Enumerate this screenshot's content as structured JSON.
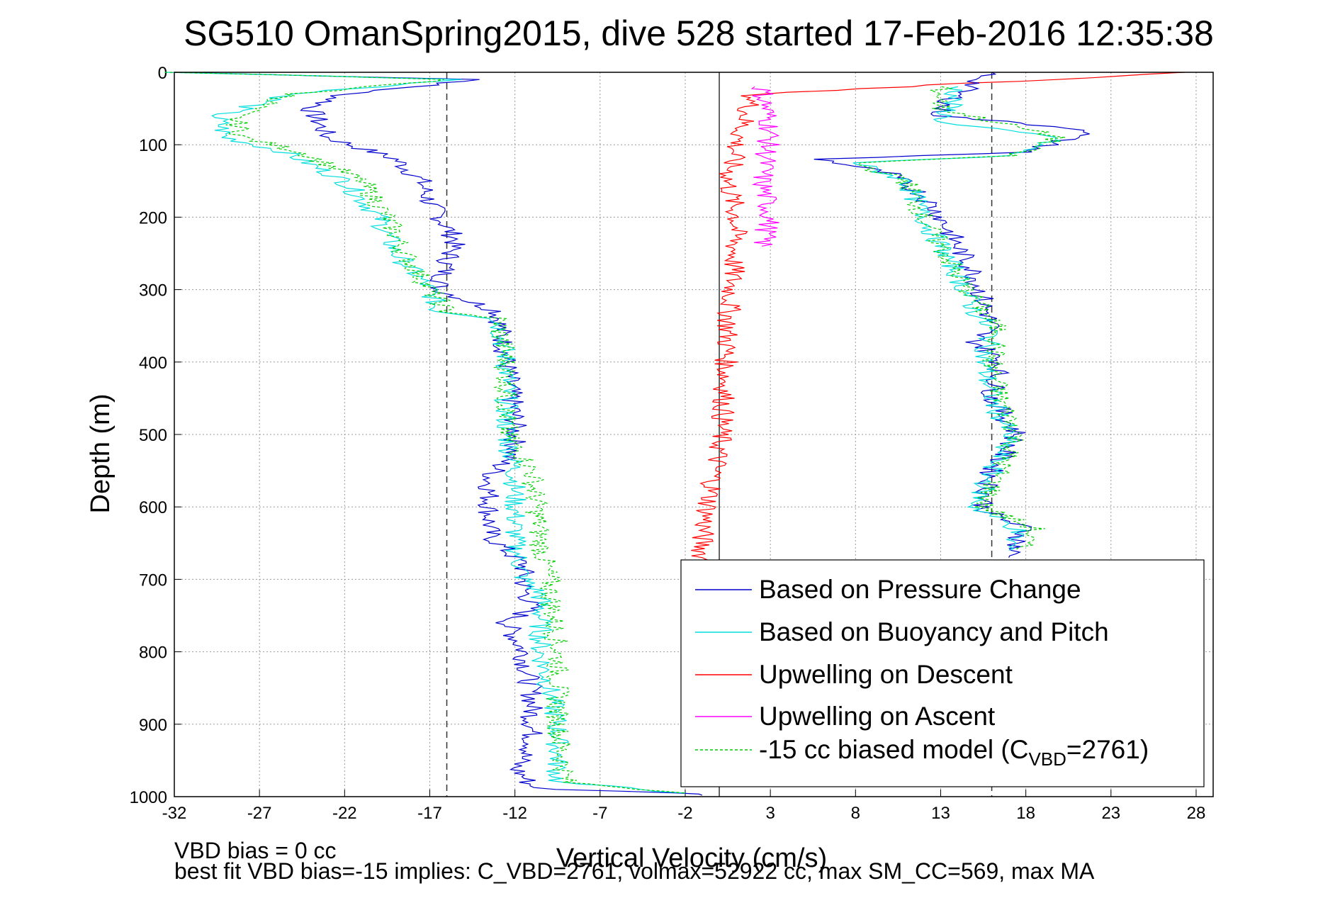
{
  "chart_data": {
    "type": "line",
    "title": "SG510 OmanSpring2015, dive 528 started 17-Feb-2016 12:35:38",
    "xlabel": "Vertical Velocity (cm/s)",
    "ylabel": "Depth (m)",
    "xlim": [
      -32,
      29
    ],
    "ylim": [
      0,
      1000
    ],
    "y_reversed": true,
    "grid": true,
    "xticks": [
      -32,
      -27,
      -22,
      -17,
      -12,
      -7,
      -2,
      3,
      8,
      13,
      18,
      23,
      28
    ],
    "yticks": [
      0,
      100,
      200,
      300,
      400,
      500,
      600,
      700,
      800,
      900,
      1000
    ],
    "reference_lines": [
      {
        "x": -16,
        "style": "dashed"
      },
      {
        "x": 0,
        "style": "solid"
      },
      {
        "x": 16,
        "style": "dashed"
      }
    ],
    "legend_placement": "bottom-right",
    "legend": [
      {
        "text": "Based on Pressure Change",
        "color": "#0000cc",
        "dash": "none"
      },
      {
        "text": "Based on Buoyancy and Pitch",
        "color": "#00dddd",
        "dash": "none"
      },
      {
        "text": "Upwelling on Descent",
        "color": "#ff0000",
        "dash": "none"
      },
      {
        "text": "Upwelling on Ascent",
        "color": "#ff00ff",
        "dash": "none"
      },
      {
        "text": "-15 cc biased model (C",
        "sub": "VBD",
        "suffix": "=2761)",
        "color": "#00cc00",
        "dash": "4,3"
      }
    ],
    "footnotes": [
      "VBD bias = 0 cc",
      "best fit VBD bias=-15 implies: C_VBD=2761, volmax=52922 cc, max SM_CC=569, max MA"
    ],
    "series": [
      {
        "name": "Based on Pressure Change",
        "color": "#0000cc",
        "dash": "none",
        "x": [
          -32,
          -14,
          -22,
          -24,
          -23,
          -19,
          -17.5,
          -17,
          -15.5,
          -16.5,
          -13,
          -12.5,
          -12,
          -12,
          -13.5,
          -13.5,
          -11.5,
          -11.5,
          -11,
          -12.5,
          -11.5,
          -11,
          -11,
          -12,
          -11,
          -10,
          -2,
          -1
        ],
        "y": [
          0,
          10,
          30,
          50,
          90,
          120,
          150,
          180,
          230,
          300,
          330,
          400,
          480,
          520,
          560,
          640,
          680,
          710,
          740,
          760,
          800,
          860,
          930,
          960,
          985,
          990,
          995,
          998
        ]
      },
      {
        "name": "Based on Buoyancy and Pitch",
        "color": "#00dddd",
        "dash": "none",
        "x": [
          -32,
          -15,
          -25,
          -29.5,
          -29,
          -25.5,
          -22,
          -20,
          -19,
          -17,
          -16.5,
          -13,
          -12.5,
          -12.5,
          -12,
          -12,
          -11.5,
          -10.5,
          -10.5,
          -9.5,
          -9.5,
          -2
        ],
        "y": [
          0,
          10,
          30,
          60,
          90,
          110,
          150,
          200,
          250,
          300,
          330,
          340,
          400,
          500,
          550,
          650,
          700,
          720,
          800,
          900,
          980,
          995
        ]
      },
      {
        "name": "-15 cc biased model (CVBD=2761)",
        "color": "#00cc00",
        "dash": "4,3",
        "x": [
          -32,
          -16,
          -25,
          -28.5,
          -28,
          -24.5,
          -21,
          -19.5,
          -18.5,
          -17,
          -16,
          -13,
          -12.5,
          -12.5,
          -11,
          -10.5,
          -10,
          -9.5,
          -9.5,
          -9,
          -2
        ],
        "y": [
          0,
          10,
          30,
          60,
          90,
          110,
          150,
          200,
          250,
          300,
          330,
          340,
          400,
          500,
          550,
          650,
          700,
          800,
          900,
          980,
          995
        ]
      },
      {
        "name": "Upwelling on Descent",
        "color": "#ff0000",
        "dash": "none",
        "x": [
          28,
          2,
          1,
          0.5,
          1,
          0.8,
          0.5,
          0.3,
          0,
          -0.5,
          -1,
          -1
        ],
        "y": [
          0,
          30,
          100,
          150,
          200,
          280,
          350,
          450,
          520,
          580,
          640,
          680
        ]
      },
      {
        "name": "Upwelling on Ascent",
        "color": "#ff00ff",
        "dash": "none",
        "x": [
          2.5,
          3,
          2.5,
          3,
          2.5
        ],
        "y": [
          20,
          80,
          150,
          200,
          240
        ]
      },
      {
        "name": "Based on Pressure Change (ascent)",
        "color": "#0000cc",
        "dash": "none",
        "x": [
          16,
          14,
          13,
          13,
          22,
          18,
          6,
          10,
          12,
          13,
          14,
          15,
          16,
          15,
          16.5,
          16,
          17.5,
          16,
          15.5,
          16,
          18,
          17
        ],
        "y": [
          0,
          30,
          50,
          60,
          80,
          110,
          120,
          140,
          170,
          200,
          240,
          280,
          350,
          370,
          400,
          450,
          500,
          550,
          600,
          610,
          630,
          670
        ]
      },
      {
        "name": "Based on Buoyancy and Pitch (ascent)",
        "color": "#00dddd",
        "dash": "none",
        "x": [
          14,
          13.5,
          13,
          20,
          17,
          8,
          11,
          12,
          14,
          15,
          16,
          15.5,
          16,
          17,
          16,
          15,
          17.5,
          17
        ],
        "y": [
          20,
          50,
          70,
          90,
          115,
          125,
          150,
          200,
          280,
          330,
          360,
          400,
          450,
          500,
          550,
          600,
          630,
          660
        ]
      },
      {
        "name": "-15 cc biased model (ascent)",
        "color": "#00cc00",
        "dash": "4,3",
        "x": [
          13,
          13,
          20,
          17,
          8,
          11,
          12,
          14,
          15.5,
          16.5,
          16,
          16.5,
          17.5,
          16.5,
          15.5,
          18.5,
          17.5
        ],
        "y": [
          20,
          50,
          90,
          115,
          125,
          150,
          200,
          280,
          330,
          360,
          400,
          450,
          500,
          550,
          600,
          630,
          660
        ]
      }
    ]
  }
}
